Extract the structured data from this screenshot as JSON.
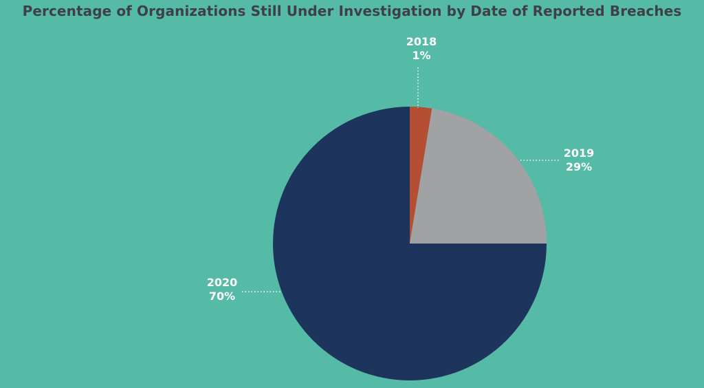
{
  "chart_data": {
    "type": "pie",
    "title": "Percentage of Organizations Still Under Investigation by Date of Reported Breaches",
    "slices": [
      {
        "label": "2018",
        "value": 1,
        "display": "1%",
        "color": "#B54F33"
      },
      {
        "label": "2019",
        "value": 29,
        "display": "29%",
        "color": "#A1A2A4"
      },
      {
        "label": "2020",
        "value": 70,
        "display": "70%",
        "color": "#1D345C"
      }
    ]
  },
  "colors": {
    "background": "#56BBA6",
    "title": "#3D4147",
    "labels": "#FFFFFF"
  }
}
